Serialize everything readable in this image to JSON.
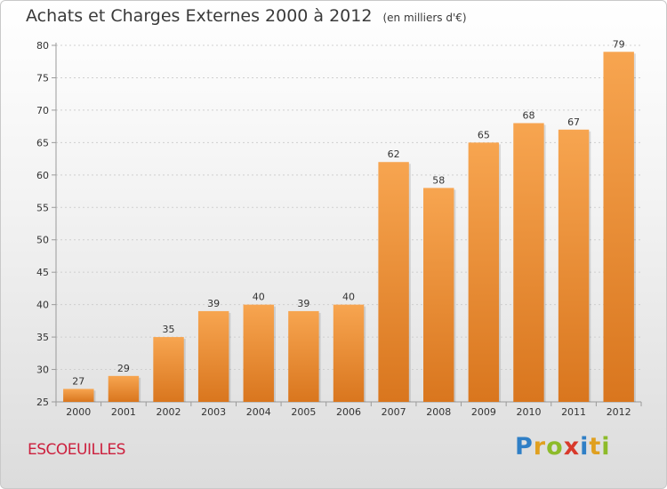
{
  "header": {
    "title": "Achats et Charges Externes 2000 à 2012",
    "subtitle": "(en milliers d'€)"
  },
  "footer": {
    "place": "ESCOEUILLES",
    "logo_text": "Proxiti"
  },
  "colors": {
    "bar_light": "#f7a550",
    "bar_dark": "#d9761e",
    "grid": "#cfcfcf",
    "axis": "#9a9a9a"
  },
  "chart_data": {
    "type": "bar",
    "title": "Achats et Charges Externes 2000 à 2012",
    "subtitle": "(en milliers d'€)",
    "xlabel": "",
    "ylabel": "",
    "categories": [
      "2000",
      "2001",
      "2002",
      "2003",
      "2004",
      "2005",
      "2006",
      "2007",
      "2008",
      "2009",
      "2010",
      "2011",
      "2012"
    ],
    "values": [
      27,
      29,
      35,
      39,
      40,
      39,
      40,
      62,
      58,
      65,
      68,
      67,
      79
    ],
    "ylim": [
      25,
      80
    ],
    "yticks": [
      25,
      30,
      35,
      40,
      45,
      50,
      55,
      60,
      65,
      70,
      75,
      80
    ],
    "grid": true,
    "legend": "none"
  }
}
